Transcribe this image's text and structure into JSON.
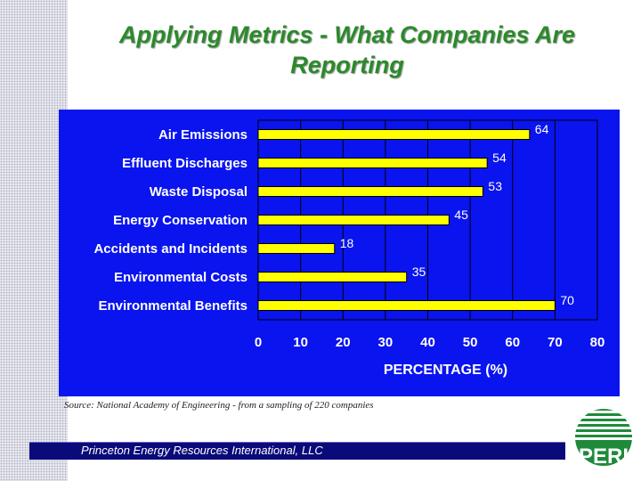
{
  "slide": {
    "title": "Applying Metrics - What Companies Are Reporting",
    "source": "Source: National Academy of Engineering - from a sampling of 220 companies",
    "footer": "Princeton Energy Resources International, LLC",
    "logo_text": "PERI",
    "colors": {
      "panel_background": "#0a14ee",
      "bar_fill": "#ffff00",
      "title": "#2a8a2a",
      "footer_bar": "#0a0a7a",
      "logo_green": "#1e8a3a"
    }
  },
  "chart_data": {
    "type": "bar",
    "orientation": "horizontal",
    "categories": [
      "Air Emissions",
      "Effluent Discharges",
      "Waste Disposal",
      "Energy Conservation",
      "Accidents and Incidents",
      "Environmental Costs",
      "Environmental Benefits"
    ],
    "values": [
      64,
      54,
      53,
      45,
      18,
      35,
      70
    ],
    "data_labels": [
      "64",
      "54",
      "53",
      "45",
      "18",
      "35",
      "70"
    ],
    "xlabel": "PERCENTAGE (%)",
    "ylabel": "",
    "xlim": [
      0,
      80
    ],
    "xticks": [
      0,
      10,
      20,
      30,
      40,
      50,
      60,
      70,
      80
    ],
    "grid": true,
    "legend": "none"
  }
}
